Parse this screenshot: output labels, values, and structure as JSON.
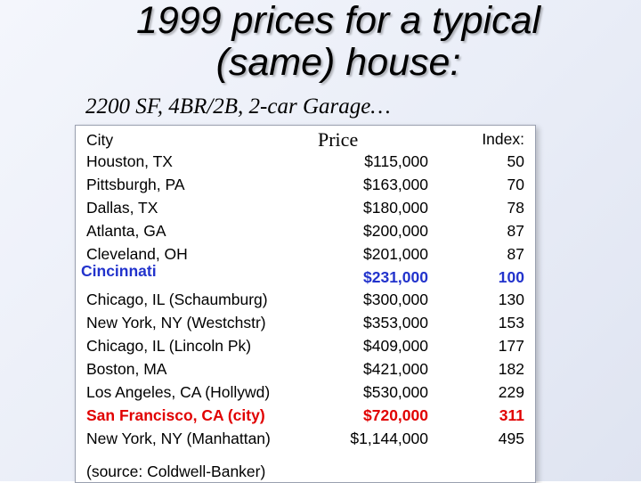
{
  "title": {
    "line1": "1999 prices for a typical",
    "line2": "(same) house:"
  },
  "subtitle": "2200 SF, 4BR/2B, 2-car Garage…",
  "table": {
    "headers": {
      "city": "City",
      "price": "Price",
      "index": "Index:"
    },
    "rows": [
      {
        "city": "Houston, TX",
        "price": "$115,000",
        "index": "50"
      },
      {
        "city": "Pittsburgh, PA",
        "price": "$163,000",
        "index": "70"
      },
      {
        "city": "Dallas, TX",
        "price": "$180,000",
        "index": "78"
      },
      {
        "city": "Atlanta, GA",
        "price": "$200,000",
        "index": "87"
      },
      {
        "city": "Cleveland, OH",
        "price": "$201,000",
        "index": "87"
      },
      {
        "city": "Cincinnati",
        "price": "$231,000",
        "index": "100",
        "highlight": "blue"
      },
      {
        "city": "Chicago, IL (Schaumburg)",
        "price": "$300,000",
        "index": "130"
      },
      {
        "city": "New York, NY (Westchstr)",
        "price": "$353,000",
        "index": "153"
      },
      {
        "city": "Chicago, IL (Lincoln Pk)",
        "price": "$409,000",
        "index": "177"
      },
      {
        "city": "Boston, MA",
        "price": "$421,000",
        "index": "182"
      },
      {
        "city": "Los Angeles, CA (Hollywd)",
        "price": "$530,000",
        "index": "229"
      },
      {
        "city": "San Francisco, CA (city)",
        "price": "$720,000",
        "index": "311",
        "highlight": "red"
      },
      {
        "city": "New York, NY (Manhattan)",
        "price": "$1,144,000",
        "index": "495"
      }
    ],
    "source": "(source: Coldwell-Banker)"
  },
  "colors": {
    "highlight_blue": "#2233cc",
    "highlight_red": "#e10000"
  }
}
